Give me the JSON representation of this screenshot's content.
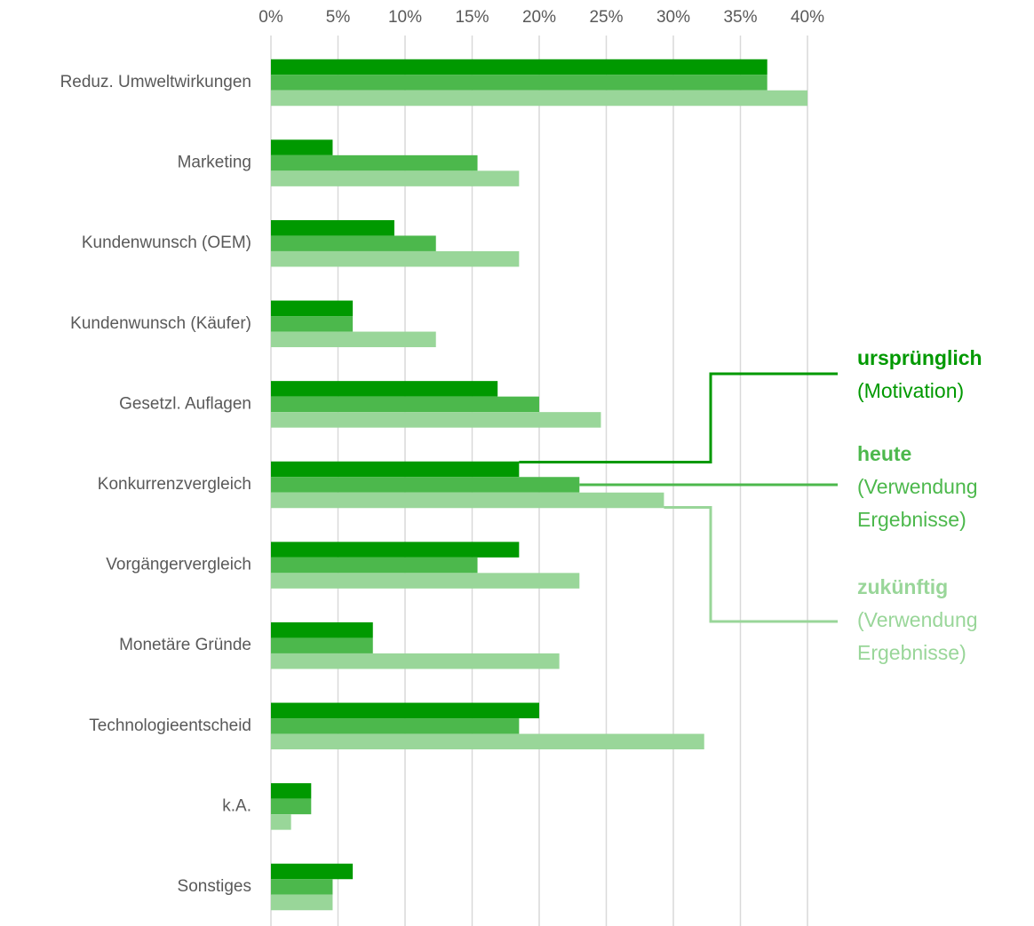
{
  "chart_data": {
    "type": "barh",
    "categories": [
      "Reduz. Umweltwirkungen",
      "Marketing",
      "Kundenwunsch (OEM)",
      "Kundenwunsch (Käufer)",
      "Gesetzl. Auflagen",
      "Konkurrenzvergleich",
      "Vorgängervergleich",
      "Monetäre Gründe",
      "Technologieentscheid",
      "k.A.",
      "Sonstiges"
    ],
    "series": [
      {
        "name": "ursprünglich",
        "color": "#009900",
        "values": [
          37,
          4.6,
          9.2,
          6.1,
          16.9,
          18.5,
          18.5,
          7.6,
          20,
          3.0,
          6.1
        ]
      },
      {
        "name": "heute",
        "color": "#4cb84c",
        "values": [
          37,
          15.4,
          12.3,
          6.1,
          20,
          23.0,
          15.4,
          7.6,
          18.5,
          3.0,
          4.6
        ]
      },
      {
        "name": "zukünftig",
        "color": "#99d699",
        "values": [
          40,
          18.5,
          18.5,
          12.3,
          24.6,
          29.3,
          23.0,
          21.5,
          32.3,
          1.5,
          4.6
        ]
      }
    ],
    "legend_notes": [
      [
        "(Motivation)"
      ],
      [
        "(Verwendung",
        "Ergebnisse)"
      ],
      [
        "(Verwendung",
        "Ergebnisse)"
      ]
    ],
    "xlim": [
      0,
      40
    ],
    "xticks": [
      {
        "value": 0,
        "label": "0%"
      },
      {
        "value": 5,
        "label": "5%"
      },
      {
        "value": 10,
        "label": "10%"
      },
      {
        "value": 15,
        "label": "15%"
      },
      {
        "value": 20,
        "label": "20%"
      },
      {
        "value": 25,
        "label": "25%"
      },
      {
        "value": 30,
        "label": "30%"
      },
      {
        "value": 35,
        "label": "35%"
      },
      {
        "value": 40,
        "label": "40%"
      }
    ],
    "grid": true
  }
}
